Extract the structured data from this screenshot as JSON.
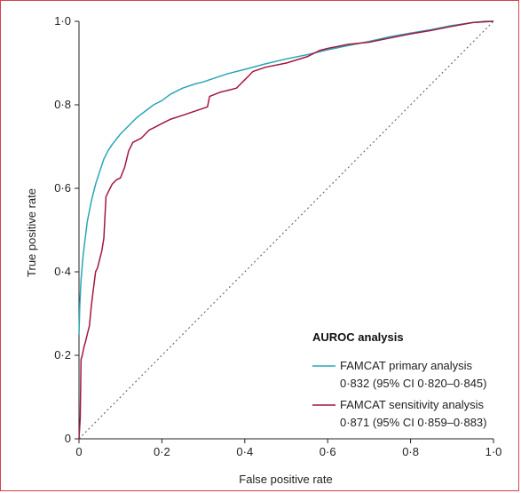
{
  "chart_data": {
    "type": "line",
    "xlabel": "False positive rate",
    "ylabel": "True positive rate",
    "xlim": [
      0,
      1
    ],
    "ylim": [
      0,
      1
    ],
    "x_ticks": [
      0,
      0.2,
      0.4,
      0.6,
      0.8,
      1.0
    ],
    "y_ticks": [
      0,
      0.2,
      0.4,
      0.6,
      0.8,
      1.0
    ],
    "x_tick_labels": [
      "0",
      "0·2",
      "0·4",
      "0·6",
      "0·8",
      "1·0"
    ],
    "y_tick_labels": [
      "0",
      "0·2",
      "0·4",
      "0·6",
      "0·8",
      "1·0"
    ],
    "grid": false,
    "legend": {
      "placement": "bottom-right",
      "title": "AUROC analysis",
      "entries": [
        {
          "name": "FAMCAT primary analysis",
          "detail": "0·832 (95% CI 0·820–0·845)",
          "color": "#2aa5b8"
        },
        {
          "name": "FAMCAT sensitivity analysis",
          "detail": "0·871 (95% CI 0·859–0·883)",
          "color": "#a3173f"
        }
      ]
    },
    "reference_line": {
      "x": [
        0,
        1
      ],
      "y": [
        0,
        1
      ],
      "style": "dotted",
      "color": "#555555"
    },
    "series": [
      {
        "name": "FAMCAT primary analysis",
        "color": "#2aa5b8",
        "x": [
          0,
          0.002,
          0.005,
          0.01,
          0.015,
          0.02,
          0.03,
          0.04,
          0.05,
          0.06,
          0.07,
          0.08,
          0.1,
          0.12,
          0.14,
          0.16,
          0.18,
          0.2,
          0.22,
          0.25,
          0.28,
          0.3,
          0.33,
          0.36,
          0.4,
          0.45,
          0.5,
          0.55,
          0.6,
          0.65,
          0.7,
          0.75,
          0.8,
          0.85,
          0.9,
          0.95,
          0.98,
          1.0
        ],
        "y": [
          0.25,
          0.32,
          0.38,
          0.44,
          0.48,
          0.52,
          0.57,
          0.61,
          0.64,
          0.67,
          0.69,
          0.705,
          0.73,
          0.75,
          0.77,
          0.785,
          0.8,
          0.81,
          0.825,
          0.84,
          0.85,
          0.855,
          0.865,
          0.875,
          0.885,
          0.898,
          0.91,
          0.92,
          0.932,
          0.942,
          0.952,
          0.963,
          0.972,
          0.98,
          0.99,
          0.997,
          1.0,
          1.0
        ]
      },
      {
        "name": "FAMCAT sensitivity analysis",
        "color": "#a3173f",
        "x": [
          0,
          0.003,
          0.005,
          0.008,
          0.012,
          0.015,
          0.02,
          0.025,
          0.03,
          0.035,
          0.04,
          0.045,
          0.05,
          0.055,
          0.06,
          0.065,
          0.07,
          0.075,
          0.08,
          0.09,
          0.1,
          0.11,
          0.12,
          0.125,
          0.13,
          0.14,
          0.15,
          0.16,
          0.17,
          0.18,
          0.2,
          0.22,
          0.25,
          0.28,
          0.31,
          0.315,
          0.34,
          0.36,
          0.38,
          0.39,
          0.4,
          0.41,
          0.42,
          0.45,
          0.5,
          0.55,
          0.58,
          0.6,
          0.65,
          0.7,
          0.75,
          0.8,
          0.85,
          0.9,
          0.95,
          1.0
        ],
        "y": [
          0,
          0.05,
          0.19,
          0.2,
          0.22,
          0.23,
          0.25,
          0.27,
          0.32,
          0.36,
          0.4,
          0.41,
          0.43,
          0.45,
          0.48,
          0.58,
          0.59,
          0.6,
          0.61,
          0.62,
          0.625,
          0.65,
          0.69,
          0.7,
          0.71,
          0.715,
          0.72,
          0.73,
          0.74,
          0.745,
          0.755,
          0.765,
          0.775,
          0.785,
          0.795,
          0.82,
          0.83,
          0.835,
          0.84,
          0.85,
          0.86,
          0.87,
          0.88,
          0.89,
          0.9,
          0.915,
          0.93,
          0.935,
          0.945,
          0.95,
          0.96,
          0.97,
          0.978,
          0.988,
          0.997,
          1.0
        ]
      }
    ]
  }
}
